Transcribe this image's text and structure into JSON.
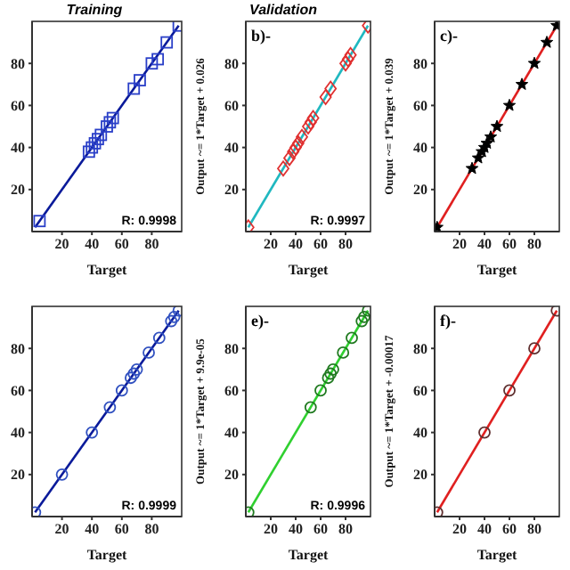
{
  "chart_data": [
    {
      "type": "scatter",
      "title": "Training",
      "xlabel": "Target",
      "annotations": [
        "R: 0.9998"
      ],
      "xlim": [
        0,
        100
      ],
      "ylim": [
        0,
        100
      ],
      "xticks": [
        20,
        40,
        60,
        80
      ],
      "yticks": [
        20,
        40,
        60,
        80
      ],
      "series": [
        {
          "marker": "square",
          "color": "#2a3fc8",
          "x": [
            5,
            38,
            40,
            42,
            44,
            46,
            50,
            52,
            54,
            68,
            72,
            80,
            84,
            90,
            98
          ],
          "values": [
            5,
            38,
            40,
            42,
            44,
            46,
            50,
            52,
            54,
            68,
            72,
            80,
            82,
            90,
            98
          ]
        },
        {
          "type": "line",
          "color": "#0a1a9a",
          "x": [
            2,
            98
          ],
          "values": [
            2,
            98
          ]
        }
      ]
    },
    {
      "type": "scatter",
      "title": "Validation",
      "subtitle": "b)-",
      "xlabel": "Target",
      "ylabel": "Output ~= 1*Target + 0.026",
      "annotations": [
        "R: 0.9997"
      ],
      "xlim": [
        0,
        100
      ],
      "ylim": [
        0,
        100
      ],
      "xticks": [
        20,
        40,
        60,
        80
      ],
      "yticks": [
        20,
        40,
        60,
        80
      ],
      "series": [
        {
          "marker": "diamond",
          "color": "#e03030",
          "x": [
            2,
            30,
            35,
            38,
            40,
            42,
            45,
            50,
            52,
            54,
            64,
            68,
            80,
            82,
            84,
            98
          ],
          "values": [
            2,
            30,
            35,
            38,
            40,
            42,
            45,
            50,
            52,
            54,
            64,
            68,
            80,
            82,
            84,
            98
          ]
        },
        {
          "type": "line",
          "color": "#20b8c0",
          "x": [
            2,
            98
          ],
          "values": [
            2,
            98
          ]
        }
      ]
    },
    {
      "type": "scatter",
      "subtitle": "c)-",
      "xlabel": "Target",
      "ylabel": "Output ~= 1*Target + 0.039",
      "xlim": [
        0,
        100
      ],
      "ylim": [
        0,
        100
      ],
      "xticks": [
        20,
        40,
        60,
        80
      ],
      "yticks": [
        20,
        40,
        60,
        80
      ],
      "series": [
        {
          "marker": "star",
          "color": "#000000",
          "x": [
            2,
            30,
            35,
            38,
            40,
            42,
            45,
            50,
            60,
            70,
            80,
            90,
            98
          ],
          "values": [
            2,
            30,
            35,
            38,
            40,
            42,
            45,
            50,
            60,
            70,
            80,
            90,
            98
          ]
        },
        {
          "type": "line",
          "color": "#e02020",
          "x": [
            2,
            98
          ],
          "values": [
            2,
            98
          ]
        }
      ]
    },
    {
      "type": "scatter",
      "xlabel": "Target",
      "annotations": [
        "R: 0.9999"
      ],
      "xlim": [
        0,
        100
      ],
      "ylim": [
        0,
        100
      ],
      "xticks": [
        20,
        40,
        60,
        80
      ],
      "yticks": [
        20,
        40,
        60,
        80
      ],
      "series": [
        {
          "marker": "circle",
          "color": "#3050c0",
          "x": [
            2,
            20,
            40,
            52,
            60,
            66,
            68,
            70,
            78,
            85,
            93,
            95,
            98
          ],
          "values": [
            2,
            20,
            40,
            52,
            60,
            66,
            68,
            70,
            78,
            85,
            93,
            95,
            98
          ]
        },
        {
          "type": "line",
          "color": "#0a1a9a",
          "x": [
            2,
            98
          ],
          "values": [
            2,
            98
          ]
        }
      ]
    },
    {
      "type": "scatter",
      "subtitle": "e)-",
      "xlabel": "Target",
      "ylabel": "Output ~= 1*Target + 9.9e-05",
      "annotations": [
        "R: 0.9996"
      ],
      "xlim": [
        0,
        100
      ],
      "ylim": [
        0,
        100
      ],
      "xticks": [
        20,
        40,
        60,
        80
      ],
      "yticks": [
        20,
        40,
        60,
        80
      ],
      "series": [
        {
          "marker": "circle",
          "color": "#207a20",
          "x": [
            2,
            52,
            60,
            66,
            68,
            70,
            78,
            85,
            93,
            95,
            98
          ],
          "values": [
            2,
            52,
            60,
            66,
            68,
            70,
            78,
            85,
            93,
            95,
            98
          ]
        },
        {
          "type": "line",
          "color": "#30d030",
          "x": [
            2,
            98
          ],
          "values": [
            2,
            98
          ]
        }
      ]
    },
    {
      "type": "scatter",
      "subtitle": "f)-",
      "xlabel": "Target",
      "ylabel": "Output ~= 1*Target + -0.00017",
      "xlim": [
        0,
        100
      ],
      "ylim": [
        0,
        100
      ],
      "xticks": [
        20,
        40,
        60,
        80
      ],
      "yticks": [
        20,
        40,
        60,
        80
      ],
      "series": [
        {
          "marker": "circle",
          "color": "#603030",
          "x": [
            2,
            40,
            60,
            80,
            98
          ],
          "values": [
            2,
            40,
            60,
            80,
            98
          ]
        },
        {
          "type": "line",
          "color": "#e02020",
          "x": [
            2,
            98
          ],
          "values": [
            2,
            98
          ]
        }
      ]
    }
  ]
}
